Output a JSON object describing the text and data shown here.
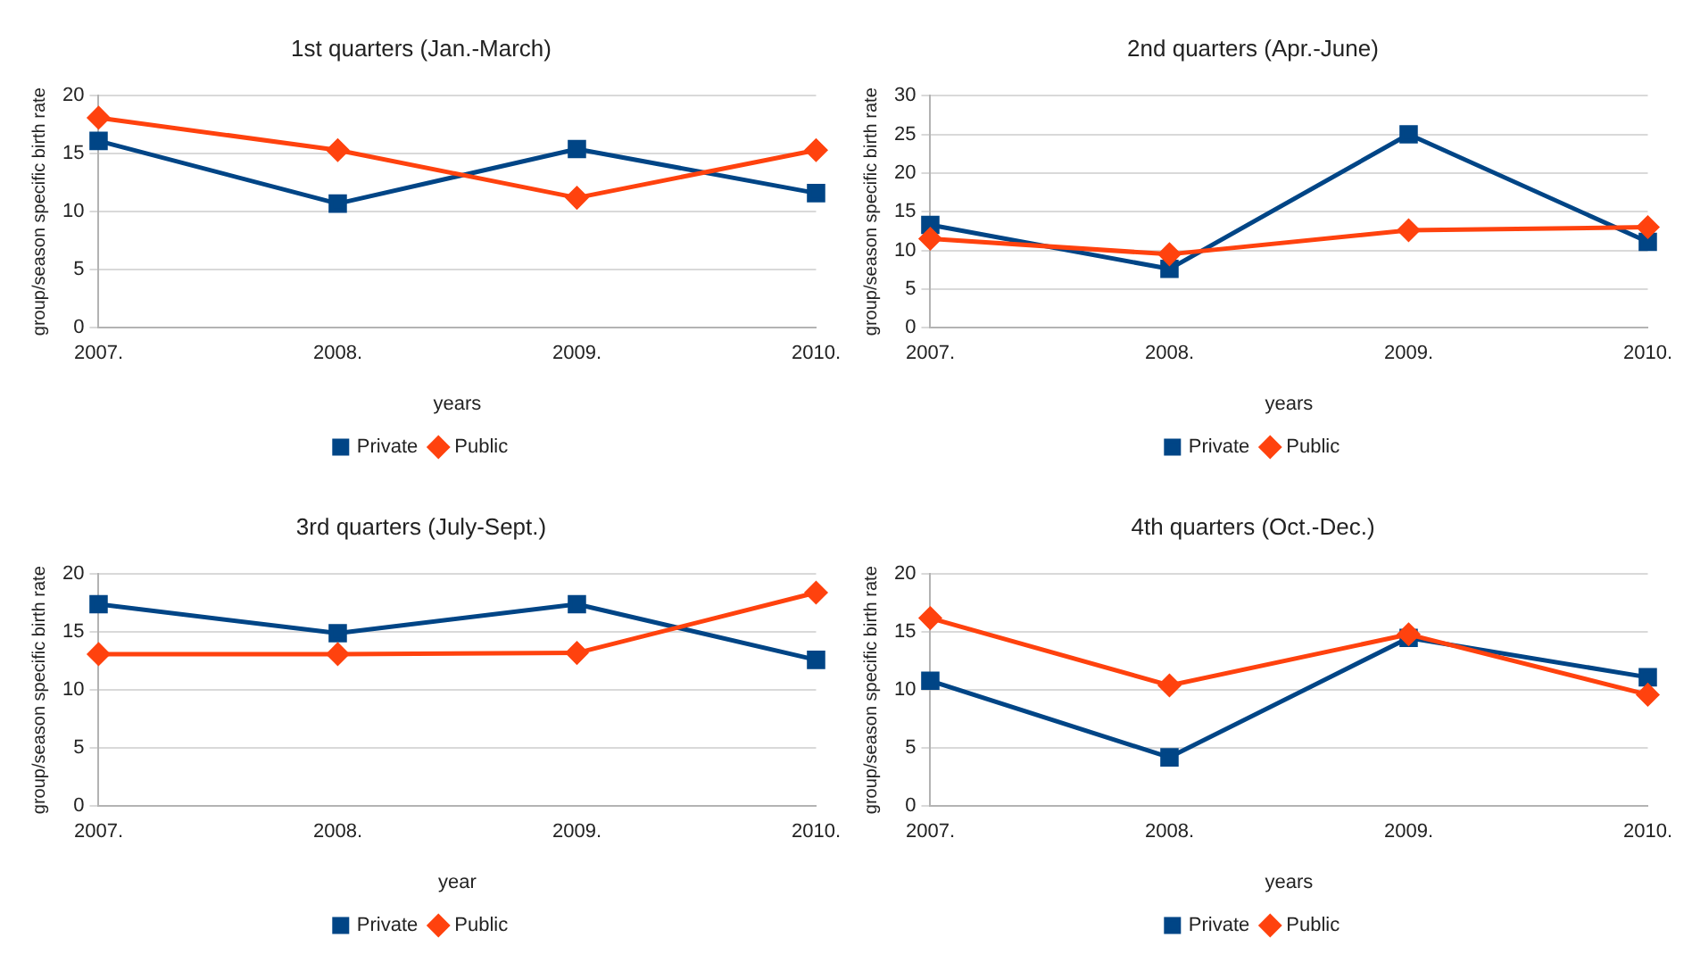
{
  "chart_data": [
    {
      "type": "line",
      "title": "1st quarters (Jan.-March)",
      "xlabel": "years",
      "ylabel": "group/season specific birth rate",
      "categories": [
        "2007.",
        "2008.",
        "2009.",
        "2010."
      ],
      "ylim": [
        0,
        20
      ],
      "yticks": [
        0,
        5,
        10,
        15,
        20
      ],
      "grid": "y",
      "legend": "bottom",
      "series": [
        {
          "name": "Private",
          "color": "#004586",
          "marker": "square",
          "values": [
            16.1,
            10.7,
            15.4,
            11.6
          ]
        },
        {
          "name": "Public",
          "color": "#ff420e",
          "marker": "diamond",
          "values": [
            18.1,
            15.3,
            11.2,
            15.3
          ]
        }
      ]
    },
    {
      "type": "line",
      "title": "2nd quarters (Apr.-June)",
      "xlabel": "years",
      "ylabel": "group/season specific birth rate",
      "categories": [
        "2007.",
        "2008.",
        "2009.",
        "2010."
      ],
      "ylim": [
        0,
        30
      ],
      "yticks": [
        0,
        5,
        10,
        15,
        20,
        25,
        30
      ],
      "grid": "y",
      "legend": "bottom",
      "series": [
        {
          "name": "Private",
          "color": "#004586",
          "marker": "square",
          "values": [
            13.3,
            7.6,
            25,
            11.1
          ]
        },
        {
          "name": "Public",
          "color": "#ff420e",
          "marker": "diamond",
          "values": [
            11.5,
            9.5,
            12.6,
            13.0
          ]
        }
      ]
    },
    {
      "type": "line",
      "title": "3rd quarters (July-Sept.)",
      "xlabel": "year",
      "ylabel": "group/season specific birth rate",
      "categories": [
        "2007.",
        "2008.",
        "2009.",
        "2010."
      ],
      "ylim": [
        0,
        20
      ],
      "yticks": [
        0,
        5,
        10,
        15,
        20
      ],
      "grid": "y",
      "legend": "bottom",
      "series": [
        {
          "name": "Private",
          "color": "#004586",
          "marker": "square",
          "values": [
            17.4,
            14.9,
            17.4,
            12.6
          ]
        },
        {
          "name": "Public",
          "color": "#ff420e",
          "marker": "diamond",
          "values": [
            13.1,
            13.1,
            13.2,
            18.4
          ]
        }
      ]
    },
    {
      "type": "line",
      "title": "4th quarters (Oct.-Dec.)",
      "xlabel": "years",
      "ylabel": "group/season specific birth rate",
      "categories": [
        "2007.",
        "2008.",
        "2009.",
        "2010."
      ],
      "ylim": [
        0,
        20
      ],
      "yticks": [
        0,
        5,
        10,
        15,
        20
      ],
      "grid": "y",
      "legend": "bottom",
      "series": [
        {
          "name": "Private",
          "color": "#004586",
          "marker": "square",
          "values": [
            10.8,
            4.2,
            14.5,
            11.1
          ]
        },
        {
          "name": "Public",
          "color": "#ff420e",
          "marker": "diamond",
          "values": [
            16.2,
            10.4,
            14.8,
            9.6
          ]
        }
      ]
    }
  ]
}
